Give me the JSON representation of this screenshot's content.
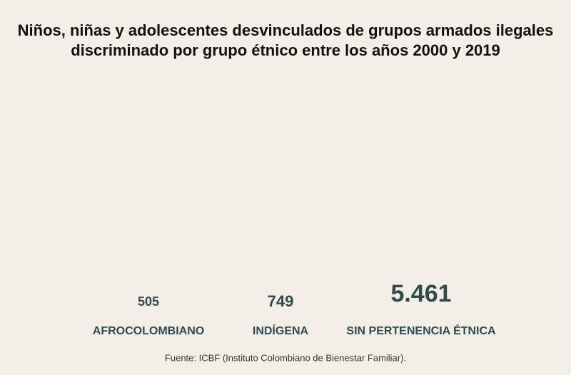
{
  "chart_data": {
    "type": "bar",
    "title": "Niños, niñas y adolescentes desvinculados de grupos armados ilegales discriminado por grupo étnico entre los años 2000 y 2019",
    "categories": [
      "AFROCOLOMBIANO",
      "INDÍGENA",
      "SIN PERTENENCIA ÉTNICA"
    ],
    "values": [
      505,
      749,
      5461
    ],
    "value_labels": [
      "505",
      "749",
      "5.461"
    ],
    "color": "#e06a5c",
    "source": "Fuente: ICBF (Instituto Colombiano de Bienestar Familiar)."
  }
}
